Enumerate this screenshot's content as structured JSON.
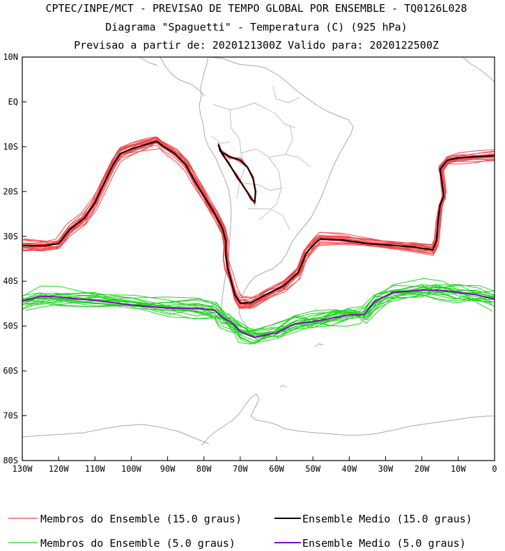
{
  "titles": {
    "line1": "CPTEC/INPE/MCT - PREVISAO DE TEMPO GLOBAL POR ENSEMBLE - TQ0126L028",
    "line2": "Diagrama \"Spaguetti\" - Temperatura (C) (925 hPa)",
    "line3": "Previsao a partir de: 2020121300Z  Valido para: 2020122500Z"
  },
  "colors": {
    "member15": "#f0484c",
    "member5": "#22d422",
    "mean15": "#000000",
    "mean5": "#8a00c8",
    "coast": "#a8a8a8"
  },
  "chart_data": {
    "type": "line",
    "map_projection": "lat-lon",
    "xlim": [
      -130,
      0
    ],
    "ylim": [
      -80,
      10
    ],
    "x_ticks": [
      "130W",
      "120W",
      "110W",
      "100W",
      "90W",
      "80W",
      "70W",
      "60W",
      "50W",
      "40W",
      "30W",
      "20W",
      "10W",
      "0"
    ],
    "y_ticks": [
      "10N",
      "EQ",
      "10S",
      "20S",
      "30S",
      "40S",
      "50S",
      "60S",
      "70S",
      "80S"
    ],
    "grid": false,
    "legend_position": "bottom",
    "series": [
      {
        "name": "Ensemble Medio (15.0 graus)",
        "color": "#000000",
        "points": [
          [
            -130,
            -32.1
          ],
          [
            -124,
            -32.1
          ],
          [
            -120,
            -31.6
          ],
          [
            -117,
            -28.5
          ],
          [
            -113,
            -26
          ],
          [
            -110,
            -22.5
          ],
          [
            -108,
            -19
          ],
          [
            -105,
            -14
          ],
          [
            -103,
            -11.5
          ],
          [
            -100,
            -10.5
          ],
          [
            -96,
            -9.5
          ],
          [
            -93,
            -8.8
          ],
          [
            -91,
            -10
          ],
          [
            -88,
            -11.5
          ],
          [
            -85,
            -14
          ],
          [
            -83,
            -17
          ],
          [
            -80,
            -21
          ],
          [
            -77,
            -25
          ],
          [
            -75,
            -28
          ],
          [
            -74,
            -31
          ],
          [
            -74,
            -34
          ],
          [
            -73.5,
            -37
          ],
          [
            -72.5,
            -40
          ],
          [
            -71.5,
            -43
          ],
          [
            -70,
            -44.9
          ],
          [
            -67,
            -44.8
          ],
          [
            -63,
            -43
          ],
          [
            -58,
            -41
          ],
          [
            -54,
            -38
          ],
          [
            -52,
            -34
          ],
          [
            -50,
            -32
          ],
          [
            -48,
            -30.6
          ],
          [
            -42,
            -30.8
          ],
          [
            -35,
            -31.6
          ],
          [
            -28,
            -32
          ],
          [
            -22,
            -32.4
          ],
          [
            -17,
            -33
          ],
          [
            -16,
            -31
          ],
          [
            -15.5,
            -26
          ],
          [
            -15,
            -23
          ],
          [
            -14,
            -21
          ],
          [
            -14.5,
            -18
          ],
          [
            -15,
            -15
          ],
          [
            -13,
            -13
          ],
          [
            -10,
            -12.5
          ],
          [
            -5,
            -12.2
          ],
          [
            0,
            -12
          ]
        ]
      },
      {
        "name": "Ensemble Medio (15.0 graus)",
        "color": "#000000",
        "points": [
          [
            -76,
            -9.5
          ],
          [
            -75.5,
            -11
          ],
          [
            -73,
            -12.2
          ],
          [
            -70,
            -13
          ],
          [
            -68,
            -14.6
          ],
          [
            -66.5,
            -17
          ],
          [
            -65.8,
            -20
          ],
          [
            -66,
            -22.4
          ],
          [
            -67,
            -21.5
          ],
          [
            -69,
            -19
          ],
          [
            -71,
            -16.5
          ],
          [
            -73,
            -14
          ],
          [
            -75,
            -11.5
          ],
          [
            -76,
            -9.5
          ]
        ]
      },
      {
        "name": "Ensemble Medio (5.0 graus)",
        "color": "#8a00c8",
        "points": [
          [
            -130,
            -44.5
          ],
          [
            -125,
            -43.3
          ],
          [
            -120,
            -43.5
          ],
          [
            -110,
            -44.3
          ],
          [
            -100,
            -45.3
          ],
          [
            -90,
            -46
          ],
          [
            -82,
            -46
          ],
          [
            -77,
            -46.5
          ],
          [
            -75,
            -48
          ],
          [
            -72,
            -49.5
          ],
          [
            -70,
            -51.2
          ],
          [
            -66,
            -52.5
          ],
          [
            -60,
            -51.5
          ],
          [
            -55,
            -49.5
          ],
          [
            -50,
            -49
          ],
          [
            -45,
            -48.3
          ],
          [
            -40,
            -47.5
          ],
          [
            -36,
            -47.5
          ],
          [
            -33,
            -44.5
          ],
          [
            -28,
            -42.5
          ],
          [
            -20,
            -42
          ],
          [
            -15,
            -42
          ],
          [
            -10,
            -42.5
          ],
          [
            -5,
            -43
          ],
          [
            0,
            -44
          ]
        ]
      },
      {
        "name": "Membros do Ensemble (15.0 graus)",
        "color": "#f0484c",
        "note": "20 ensemble members drawn as perturbations of the 15.0 graus mean"
      },
      {
        "name": "Membros do Ensemble (5.0 graus)",
        "color": "#22d422",
        "note": "20 ensemble members drawn as perturbations of the 5.0 graus mean"
      }
    ]
  },
  "legend": {
    "member15": "Membros do Ensemble (15.0 graus)",
    "mean15": "Ensemble Medio (15.0 graus)",
    "member5": "Membros do Ensemble (5.0 graus)",
    "mean5": "Ensemble Medio (5.0 graus)"
  }
}
